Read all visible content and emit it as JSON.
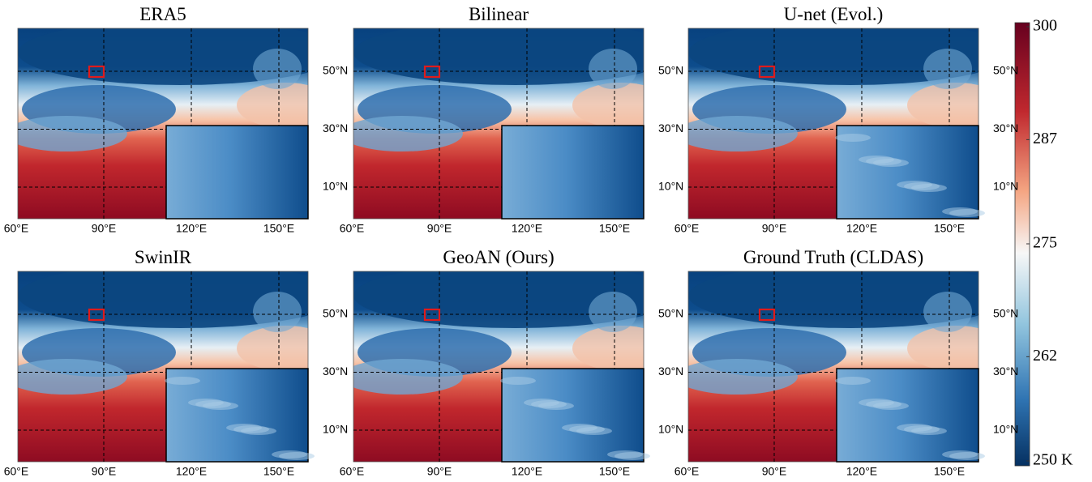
{
  "panels": [
    {
      "title": "ERA5"
    },
    {
      "title": "Bilinear"
    },
    {
      "title": "U-net (Evol.)"
    },
    {
      "title": "SwinIR"
    },
    {
      "title": "GeoAN (Ours)"
    },
    {
      "title": "Ground Truth (CLDAS)"
    }
  ],
  "x_ticks": [
    "60°E",
    "90°E",
    "120°E",
    "150°E"
  ],
  "y_ticks": [
    "50°N",
    "30°N",
    "10°N"
  ],
  "colorbar": {
    "ticks": [
      300,
      287,
      275,
      262,
      {
        "value": 250,
        "label": "250 K"
      }
    ]
  }
}
